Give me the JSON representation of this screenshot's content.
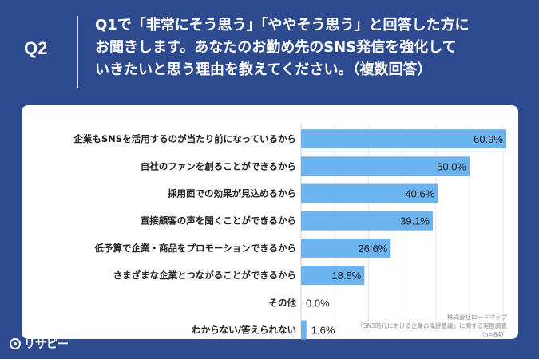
{
  "question": {
    "badge": "Q2",
    "line1": "Q1で「非常にそう思う」「ややそう思う」と回答した方に",
    "line2": "お聞きします。あなたのお勤め先のSNS発信を強化して",
    "line3": "いきたいと思う理由を教えてください。（複数回答）"
  },
  "logo": {
    "text": "リサピー"
  },
  "source": {
    "line1": "株式会社ロードマップ",
    "line2": "「SNS時代における企業の風評意識」に関する実態調査",
    "line3": "（n=64）"
  },
  "colors": {
    "header_bg": "#2e4a8f",
    "bar": "#6cb4f0",
    "card": "#ffffff"
  },
  "chart_data": {
    "type": "bar",
    "orientation": "horizontal",
    "categories": [
      "企業もSNSを活用するのが当たり前になっているから",
      "自社のファンを創ることができるから",
      "採用面での効果が見込めるから",
      "直接顧客の声を聞くことができるから",
      "低予算で企業・商品をプロモーションできるから",
      "さまざまな企業とつながることができるから",
      "その他",
      "わからない/答えられない"
    ],
    "values": [
      60.9,
      50.0,
      40.6,
      39.1,
      26.6,
      18.8,
      0.0,
      1.6
    ],
    "value_labels": [
      "60.9%",
      "50.0%",
      "40.6%",
      "39.1%",
      "26.6%",
      "18.8%",
      "0.0%",
      "1.6%"
    ],
    "xlim": [
      0,
      70
    ],
    "grid": true
  }
}
